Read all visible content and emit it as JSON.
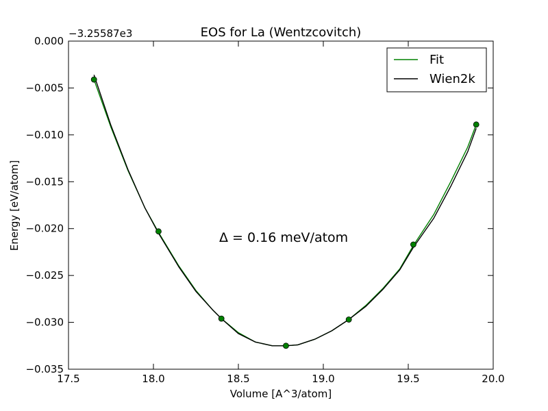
{
  "chart_data": {
    "type": "line",
    "title": "EOS for La (Wentzcovitch)",
    "xlabel": "Volume [A^3/atom]",
    "ylabel": "Energy [eV/atom]",
    "y_offset_label": "−3.25587e3",
    "xlim": [
      17.5,
      20.0
    ],
    "ylim": [
      -0.035,
      0.0
    ],
    "x_ticks": [
      17.5,
      18.0,
      18.5,
      19.0,
      19.5,
      20.0
    ],
    "x_tick_labels": [
      "17.5",
      "18.0",
      "18.5",
      "19.0",
      "19.5",
      "20.0"
    ],
    "y_ticks": [
      0.0,
      -0.005,
      -0.01,
      -0.015,
      -0.02,
      -0.025,
      -0.03,
      -0.035
    ],
    "y_tick_labels": [
      "0.000",
      "−0.005",
      "−0.010",
      "−0.015",
      "−0.020",
      "−0.025",
      "−0.030",
      "−0.035"
    ],
    "grid": false,
    "legend_position": "top-right",
    "annotation": "Δ = 0.16 meV/atom",
    "series": [
      {
        "name": "Fit",
        "kind": "line",
        "color": "#008000",
        "x": [
          17.65,
          17.75,
          17.85,
          17.95,
          18.03,
          18.15,
          18.25,
          18.35,
          18.4,
          18.5,
          18.6,
          18.7,
          18.78,
          18.85,
          18.95,
          19.05,
          19.15,
          19.25,
          19.35,
          19.45,
          19.53,
          19.65,
          19.75,
          19.85,
          19.9
        ],
        "y": [
          -0.0041,
          -0.0092,
          -0.0138,
          -0.0178,
          -0.0204,
          -0.024,
          -0.0266,
          -0.0287,
          -0.0296,
          -0.0311,
          -0.0321,
          -0.0325,
          -0.0325,
          -0.0324,
          -0.0318,
          -0.0309,
          -0.0297,
          -0.0282,
          -0.0264,
          -0.0243,
          -0.0218,
          -0.0185,
          -0.015,
          -0.0113,
          -0.0089
        ]
      },
      {
        "name": "Wien2k",
        "kind": "line",
        "color": "#000000",
        "x": [
          17.65,
          17.75,
          17.85,
          17.95,
          18.03,
          18.15,
          18.25,
          18.35,
          18.4,
          18.5,
          18.6,
          18.7,
          18.78,
          18.85,
          18.95,
          19.05,
          19.15,
          19.25,
          19.35,
          19.45,
          19.53,
          19.65,
          19.75,
          19.85,
          19.9
        ],
        "y": [
          -0.0036,
          -0.009,
          -0.0137,
          -0.0178,
          -0.0205,
          -0.0241,
          -0.0267,
          -0.0287,
          -0.0296,
          -0.0312,
          -0.0321,
          -0.0325,
          -0.0325,
          -0.0324,
          -0.0318,
          -0.0309,
          -0.0297,
          -0.0283,
          -0.0265,
          -0.0244,
          -0.022,
          -0.0189,
          -0.0155,
          -0.0118,
          -0.0093
        ]
      },
      {
        "name": "",
        "kind": "points",
        "color": "#008000",
        "x": [
          17.65,
          18.03,
          18.4,
          18.78,
          19.15,
          19.53,
          19.9
        ],
        "y": [
          -0.0041,
          -0.0203,
          -0.0296,
          -0.0325,
          -0.0297,
          -0.0217,
          -0.0089
        ]
      }
    ]
  }
}
